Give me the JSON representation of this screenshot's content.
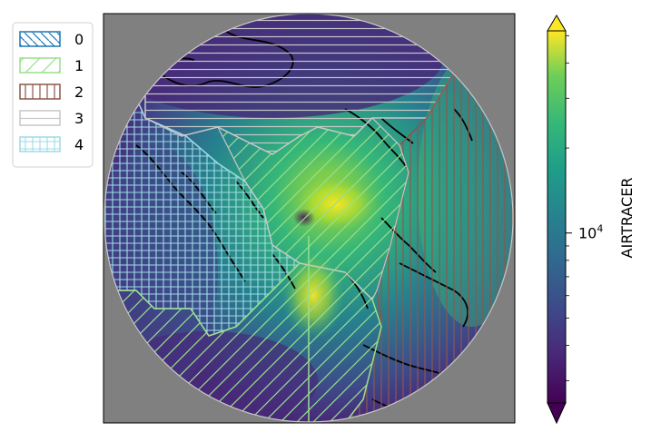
{
  "chart_data": {
    "type": "heatmap",
    "projection": "north-polar-stereographic",
    "background": "gray",
    "coastlines": true,
    "colorbar": {
      "label": "AIRTRACER",
      "scale": "log",
      "colormap": "viridis",
      "ticks": [
        {
          "value": 10000,
          "base": "10",
          "exp": "4"
        }
      ],
      "extend": "both"
    },
    "legend": {
      "position": "top-left, outside plot",
      "entries": [
        {
          "label": "0",
          "color": "#1f77b4",
          "hatch": "diagonal-back"
        },
        {
          "label": "1",
          "color": "#98df8a",
          "hatch": "diagonal-forward"
        },
        {
          "label": "2",
          "color": "#8c564b",
          "hatch": "vertical"
        },
        {
          "label": "3",
          "color": "#c7c7c7",
          "hatch": "horizontal"
        },
        {
          "label": "4",
          "color": "#9edae5",
          "hatch": "grid"
        }
      ]
    }
  }
}
